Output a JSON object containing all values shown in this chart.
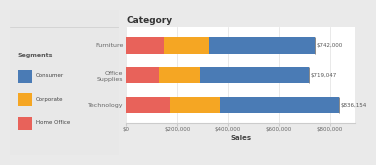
{
  "categories": [
    "Furniture",
    "Office\nSupplies",
    "Technology"
  ],
  "segments": {
    "Home Office": [
      150000,
      130000,
      170000
    ],
    "Corporate": [
      175000,
      160000,
      200000
    ],
    "Consumer": [
      417000,
      429047,
      466154
    ]
  },
  "totals": [
    "$742,000",
    "$719,047",
    "$836,154"
  ],
  "colors": {
    "Home Office": "#E8625A",
    "Corporate": "#F5A623",
    "Consumer": "#4A7BB5"
  },
  "segment_order": [
    "Home Office",
    "Corporate",
    "Consumer"
  ],
  "xlabel": "Sales",
  "title": "Category",
  "xlim": [
    0,
    900000
  ],
  "xticks": [
    0,
    200000,
    400000,
    600000,
    800000
  ],
  "xticklabels": [
    "$0",
    "$200,000",
    "$400,000",
    "$600,000",
    "$800,000"
  ],
  "bg_color": "#EAEAEA",
  "chart_bg": "#FFFFFF",
  "left_panel_color": "#F0F0F0",
  "sidebar_bg": "#E8E8E8",
  "bar_height": 0.55,
  "legend_items": [
    "Consumer",
    "Corporate",
    "Home Office"
  ],
  "legend_colors": [
    "#4A7BB5",
    "#F5A623",
    "#E8625A"
  ]
}
